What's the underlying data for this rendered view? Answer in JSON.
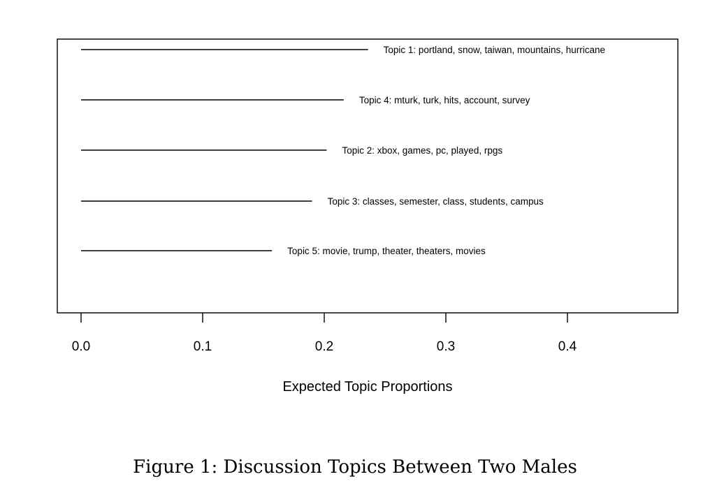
{
  "chart_data": {
    "type": "line",
    "xlabel": "Expected Topic Proportions",
    "ylabel": "",
    "xlim": [
      -0.02,
      0.49
    ],
    "xticks": [
      "0.0",
      "0.1",
      "0.2",
      "0.3",
      "0.4"
    ],
    "grid": false,
    "legend": "none",
    "series": [
      {
        "label": "Topic 1: portland, snow, taiwan, mountains, hurricane",
        "x0": 0.0,
        "x1": 0.236
      },
      {
        "label": "Topic 4: mturk, turk, hits, account, survey",
        "x0": 0.0,
        "x1": 0.216
      },
      {
        "label": "Topic 2: xbox, games, pc, played, rpgs",
        "x0": 0.0,
        "x1": 0.202
      },
      {
        "label": "Topic 3: classes, semester, class, students, campus",
        "x0": 0.0,
        "x1": 0.19
      },
      {
        "label": "Topic 5: movie, trump, theater, theaters, movies",
        "x0": 0.0,
        "x1": 0.157
      }
    ]
  },
  "caption": "Figure 1: Discussion Topics Between Two Males"
}
